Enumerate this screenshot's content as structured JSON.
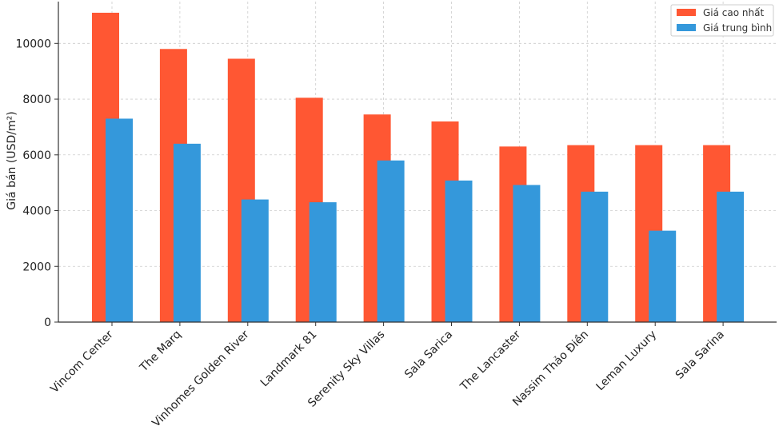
{
  "chart_data": {
    "type": "bar",
    "title": "",
    "xlabel": "",
    "ylabel": "Giá bán (USD/m²)",
    "ylim": [
      0,
      11500
    ],
    "yticks": [
      0,
      2000,
      4000,
      6000,
      8000,
      10000
    ],
    "grid": true,
    "legend_position": "top-right",
    "categories": [
      "Vincom Center",
      "The Marq",
      "Vinhomes Golden River",
      "Landmark 81",
      "Serenity Sky Villas",
      "Sala Sarica",
      "The Lancaster",
      "Nassim Thảo Điền",
      "Leman Luxury",
      "Sala Sarina"
    ],
    "series": [
      {
        "name": "Giá cao nhất",
        "color": "#ff5733",
        "values": [
          11100,
          9800,
          9450,
          8050,
          7450,
          7200,
          6300,
          6350,
          6350,
          6350
        ]
      },
      {
        "name": "Giá trung bình",
        "color": "#3498db",
        "values": [
          7300,
          6400,
          4400,
          4300,
          5800,
          5080,
          4920,
          4680,
          3280,
          4680
        ]
      }
    ]
  }
}
